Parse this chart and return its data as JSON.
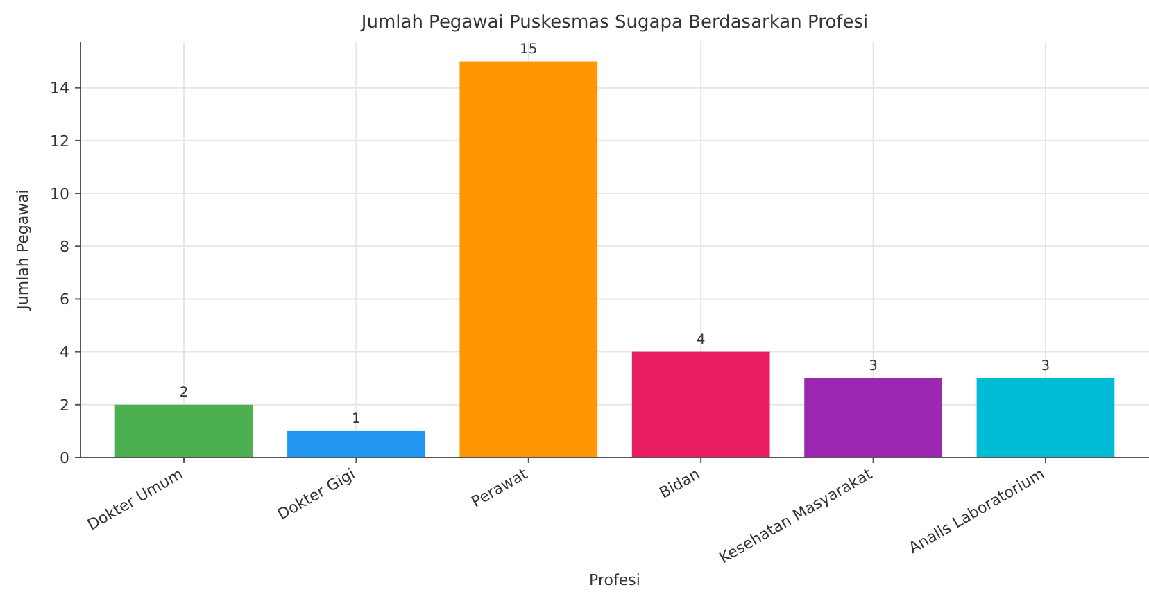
{
  "chart_data": {
    "type": "bar",
    "title": "Jumlah Pegawai Puskesmas Sugapa Berdasarkan Profesi",
    "xlabel": "Profesi",
    "ylabel": "Jumlah Pegawai",
    "categories": [
      "Dokter Umum",
      "Dokter Gigi",
      "Perawat",
      "Bidan",
      "Kesehatan Masyarakat",
      "Analis Laboratorium"
    ],
    "values": [
      2,
      1,
      15,
      4,
      3,
      3
    ],
    "colors": [
      "#4caf50",
      "#2196f3",
      "#ff9800",
      "#e91e63",
      "#9c27b0",
      "#00bcd4"
    ],
    "ylim": [
      0,
      15.75
    ],
    "yticks": [
      0,
      2,
      4,
      6,
      8,
      10,
      12,
      14
    ],
    "grid": true,
    "data_labels": true
  }
}
